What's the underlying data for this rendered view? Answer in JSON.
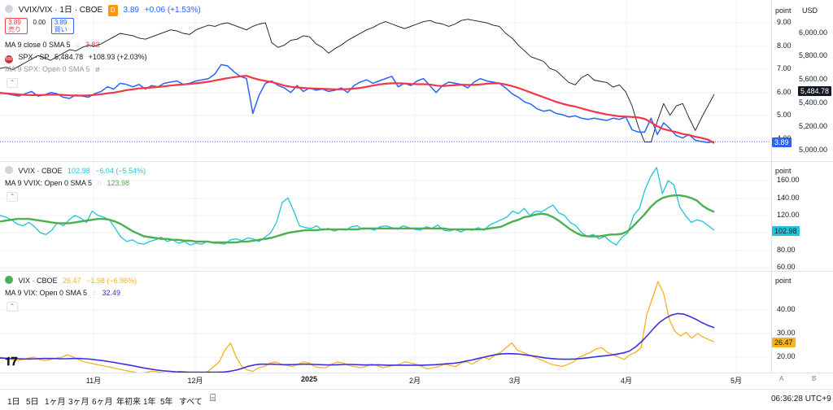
{
  "colors": {
    "black": "#131722",
    "red": "#f23645",
    "blue": "#2962ff",
    "cyan": "#22c3d6",
    "green": "#4caf50",
    "orange": "#f6b21b",
    "purple": "#3d2ee0",
    "grid": "#eef0f4"
  },
  "pane1": {
    "title": "VVIX/VIX · 1日 · CBOE",
    "d_badge": "D",
    "price": "3.89",
    "change": "+0.06 (+1.53%)",
    "sell_price": "3.89",
    "sell_label": "売り",
    "spread": "0.00",
    "buy_price": "3.89",
    "buy_label": "買い",
    "ma_label": "MA 9 close 0 SMA 5",
    "ma_value": "3.83",
    "spx_icon": "500",
    "spx_label": "SPX · SP",
    "spx_value": "5,484.78",
    "spx_change": "+108.93 (+2.03%)",
    "ma2_label": "MA 9 SPX: Open 0 SMA 5",
    "unit": "point",
    "currency": "USD",
    "ticks_left": [
      "9.00",
      "8.00",
      "7.00",
      "6.00",
      "5.00",
      "4.00"
    ],
    "ticks_right": [
      "6,000.00",
      "5,800.00",
      "5,600.00",
      "5,400.00",
      "5,200.00",
      "5,000.00"
    ],
    "tag_ratio": "3.89",
    "tag_spx": "5,484.78"
  },
  "pane2": {
    "title": "VVIX · CBOE",
    "price": "102.98",
    "change": "−6.04 (−5.54%)",
    "ma_label": "MA 9 VVIX: Open 0 SMA 5",
    "ma_value": "123.98",
    "unit": "point",
    "ticks": [
      "160.00",
      "140.00",
      "120.00",
      "100.00",
      "80.00",
      "60.00"
    ],
    "tag": "102.98"
  },
  "pane3": {
    "title": "VIX · CBOE",
    "price": "26.47",
    "change": "−1.98 (−6.96%)",
    "ma_label": "MA 9 VIX: Open 0 SMA 5",
    "ma_value": "32.49",
    "unit": "point",
    "ticks": [
      "40.00",
      "30.00",
      "20.00"
    ],
    "tag": "26.47"
  },
  "xaxis": [
    "11月",
    "12月",
    "2025",
    "2月",
    "3月",
    "4月",
    "5月"
  ],
  "scale_btns": [
    "A",
    "B"
  ],
  "ranges": [
    "1日",
    "5日",
    "1ヶ月",
    "3ヶ月",
    "6ヶ月",
    "年初来",
    "1年",
    "5年",
    "すべて"
  ],
  "clock": "06:36:28 UTC+9",
  "chart_data": [
    {
      "type": "line",
      "series": [
        {
          "name": "SPX",
          "axis": "right",
          "values": [
            5700,
            5710,
            5690,
            5720,
            5750,
            5780,
            5810,
            5790,
            5770,
            5800,
            5830,
            5860,
            5850,
            5880,
            5900,
            5890,
            5910,
            5940,
            5970,
            6000,
            5990,
            5980,
            5960,
            5950,
            5970,
            5990,
            6010,
            6030,
            6020,
            6000,
            5990,
            6030,
            6050,
            6070,
            6060,
            6080,
            6090,
            6070,
            6050,
            6030,
            6060,
            6080,
            6090,
            5920,
            5880,
            5900,
            5940,
            5950,
            5980,
            5970,
            5910,
            5880,
            5830,
            5870,
            5900,
            5940,
            5970,
            6000,
            6030,
            6050,
            6080,
            6100,
            6080,
            6060,
            6040,
            6060,
            6080,
            6100,
            6110,
            6090,
            6080,
            6060,
            6080,
            6110,
            6120,
            6110,
            6100,
            6090,
            6070,
            6060,
            6000,
            5960,
            5900,
            5850,
            5800,
            5780,
            5760,
            5700,
            5680,
            5630,
            5580,
            5560,
            5620,
            5650,
            5600,
            5590,
            5580,
            5540,
            5560,
            5500,
            5380,
            5200,
            5070,
            5070,
            5250,
            5400,
            5300,
            5380,
            5400,
            5280,
            5170,
            5280,
            5380,
            5480
          ]
        },
        {
          "name": "VVIX/VIX",
          "axis": "left",
          "values": [
            6.0,
            5.95,
            5.9,
            5.85,
            5.95,
            6.05,
            5.85,
            5.9,
            6.0,
            5.95,
            5.8,
            5.75,
            5.9,
            5.85,
            5.8,
            5.95,
            6.05,
            6.25,
            6.15,
            6.4,
            6.35,
            6.25,
            6.35,
            6.15,
            6.3,
            6.25,
            6.4,
            6.45,
            6.5,
            6.35,
            6.4,
            6.5,
            6.55,
            6.6,
            6.8,
            7.2,
            7.15,
            6.9,
            6.7,
            6.6,
            5.1,
            5.9,
            6.4,
            6.5,
            6.3,
            6.2,
            6.0,
            6.3,
            6.05,
            6.2,
            6.1,
            6.15,
            6.05,
            6.1,
            6.2,
            6.0,
            6.3,
            6.45,
            6.55,
            6.4,
            6.5,
            6.6,
            6.7,
            6.25,
            6.4,
            6.3,
            6.5,
            6.6,
            6.3,
            6.0,
            6.3,
            6.45,
            6.4,
            6.35,
            6.2,
            6.45,
            6.6,
            6.5,
            6.45,
            6.4,
            6.2,
            5.95,
            5.8,
            5.6,
            5.5,
            5.3,
            5.2,
            5.25,
            5.1,
            5.05,
            4.95,
            5.0,
            4.9,
            4.85,
            4.9,
            4.85,
            4.8,
            4.9,
            4.85,
            4.95,
            4.4,
            4.3,
            4.3,
            4.9,
            4.2,
            4.7,
            4.45,
            4.15,
            4.05,
            4.2,
            3.95,
            3.9,
            3.85,
            3.89
          ]
        },
        {
          "name": "MA 9",
          "axis": "left",
          "values": [
            5.98,
            5.96,
            5.94,
            5.92,
            5.9,
            5.89,
            5.89,
            5.9,
            5.91,
            5.91,
            5.9,
            5.88,
            5.87,
            5.87,
            5.88,
            5.9,
            5.93,
            5.97,
            6.0,
            6.05,
            6.1,
            6.14,
            6.18,
            6.2,
            6.22,
            6.24,
            6.27,
            6.3,
            6.33,
            6.35,
            6.37,
            6.4,
            6.43,
            6.47,
            6.52,
            6.57,
            6.62,
            6.66,
            6.7,
            6.72,
            6.63,
            6.55,
            6.5,
            6.45,
            6.38,
            6.3,
            6.25,
            6.22,
            6.2,
            6.18,
            6.17,
            6.16,
            6.15,
            6.14,
            6.14,
            6.15,
            6.17,
            6.2,
            6.25,
            6.3,
            6.35,
            6.38,
            6.4,
            6.4,
            6.39,
            6.37,
            6.36,
            6.36,
            6.35,
            6.3,
            6.28,
            6.3,
            6.32,
            6.34,
            6.33,
            6.33,
            6.35,
            6.38,
            6.4,
            6.4,
            6.35,
            6.28,
            6.2,
            6.1,
            6.0,
            5.9,
            5.8,
            5.7,
            5.6,
            5.52,
            5.45,
            5.4,
            5.32,
            5.25,
            5.18,
            5.12,
            5.06,
            5.02,
            4.98,
            4.97,
            4.95,
            4.93,
            4.87,
            4.72,
            4.55,
            4.43,
            4.36,
            4.3,
            4.22,
            4.18,
            4.1,
            4.05,
            3.98,
            3.83
          ]
        }
      ]
    },
    {
      "type": "line",
      "series": [
        {
          "name": "VVIX",
          "values": [
            120,
            118,
            115,
            110,
            108,
            112,
            107,
            100,
            98,
            103,
            112,
            108,
            115,
            120,
            117,
            112,
            125,
            120,
            118,
            115,
            105,
            95,
            90,
            92,
            88,
            87,
            90,
            92,
            95,
            90,
            92,
            88,
            90,
            86,
            88,
            87,
            90,
            88,
            88,
            87,
            92,
            93,
            91,
            94,
            93,
            90,
            95,
            100,
            112,
            135,
            140,
            125,
            108,
            106,
            105,
            108,
            103,
            105,
            102,
            104,
            103,
            107,
            108,
            104,
            105,
            103,
            107,
            108,
            106,
            104,
            108,
            106,
            104,
            103,
            107,
            105,
            109,
            103,
            102,
            104,
            101,
            104,
            103,
            106,
            103,
            109,
            112,
            115,
            118,
            125,
            122,
            128,
            120,
            125,
            124,
            128,
            132,
            123,
            120,
            112,
            108,
            100,
            96,
            98,
            93,
            96,
            90,
            86,
            95,
            100,
            120,
            128,
            150,
            165,
            175,
            145,
            160,
            155,
            130,
            120,
            112,
            115,
            113,
            108,
            102.98
          ]
        },
        {
          "name": "MA 9",
          "values": [
            113,
            114,
            115,
            116,
            116,
            116,
            115,
            114,
            113,
            112,
            111,
            111,
            111,
            112,
            113,
            114,
            115,
            116,
            116,
            115,
            113,
            110,
            106,
            102,
            99,
            96,
            95,
            94,
            93,
            93,
            92,
            92,
            91,
            91,
            90,
            90,
            90,
            89,
            89,
            89,
            89,
            89,
            90,
            90,
            91,
            92,
            93,
            94,
            96,
            98,
            100,
            101,
            102,
            103,
            103,
            103,
            104,
            104,
            104,
            104,
            104,
            104,
            104,
            105,
            105,
            105,
            105,
            105,
            105,
            105,
            105,
            105,
            105,
            105,
            105,
            105,
            105,
            105,
            104,
            104,
            104,
            104,
            104,
            104,
            104,
            105,
            106,
            107,
            110,
            113,
            115,
            118,
            119,
            121,
            122,
            121,
            118,
            114,
            109,
            104,
            100,
            97,
            96,
            96,
            96,
            97,
            98,
            98,
            99,
            102,
            108,
            115,
            122,
            130,
            136,
            140,
            142,
            143,
            143,
            142,
            140,
            137,
            131,
            127,
            123.98
          ]
        }
      ]
    },
    {
      "type": "line",
      "series": [
        {
          "name": "VIX",
          "values": [
            20,
            19.5,
            19,
            18.5,
            19,
            19.5,
            20,
            19,
            18.5,
            19,
            19.5,
            20,
            21,
            20,
            19,
            18,
            17.5,
            17,
            16.5,
            16,
            15.5,
            15,
            14.5,
            14,
            13.5,
            13,
            13.5,
            14,
            13.8,
            13.4,
            13,
            13.5,
            14,
            13.8,
            13.6,
            13.4,
            13.2,
            14,
            16,
            18,
            23,
            26,
            20,
            16,
            14.5,
            14,
            15.5,
            16,
            17.5,
            18,
            17,
            16.5,
            16,
            17,
            18,
            17.5,
            16,
            15.5,
            15.5,
            17,
            18,
            17.5,
            16.5,
            16,
            15.5,
            16,
            17,
            16.5,
            15.5,
            16,
            16.5,
            17,
            18,
            17.5,
            17,
            16,
            15,
            15.5,
            16,
            17,
            16.5,
            16,
            17.5,
            18,
            17,
            18.5,
            20,
            19,
            21,
            22,
            24,
            26,
            23,
            22,
            21,
            20,
            19,
            18,
            17,
            16.5,
            16,
            17,
            18,
            20,
            21,
            22,
            23.5,
            24,
            22,
            21,
            20,
            19,
            21,
            22,
            24,
            38,
            45,
            52,
            47,
            36,
            31,
            29,
            30.5,
            28,
            30,
            28.5,
            27.5,
            26.47
          ]
        },
        {
          "name": "MA 9",
          "values": [
            19.6,
            19.5,
            19.4,
            19.3,
            19.2,
            19.2,
            19.3,
            19.4,
            19.4,
            19.4,
            19.3,
            19.3,
            19.4,
            19.4,
            19.3,
            19.1,
            18.8,
            18.5,
            18.1,
            17.7,
            17.2,
            16.8,
            16.3,
            15.8,
            15.3,
            14.9,
            14.5,
            14.2,
            14,
            13.8,
            13.7,
            13.6,
            13.6,
            13.6,
            13.6,
            13.6,
            13.6,
            13.7,
            14,
            14.5,
            15.2,
            16.1,
            16.7,
            17,
            17,
            17,
            16.9,
            16.8,
            16.8,
            16.9,
            17,
            17,
            16.9,
            16.8,
            16.7,
            16.7,
            16.8,
            16.9,
            16.9,
            16.8,
            16.7,
            16.7,
            16.7,
            16.7,
            16.6,
            16.6,
            16.6,
            16.6,
            16.6,
            16.6,
            16.6,
            16.7,
            16.8,
            17,
            17.2,
            17.4,
            17.8,
            18.3,
            18.8,
            19.4,
            20,
            20.6,
            21.1,
            21.4,
            21.5,
            21.4,
            21.2,
            20.9,
            20.5,
            20.1,
            19.7,
            19.4,
            19.2,
            19.1,
            19.1,
            19.2,
            19.4,
            19.7,
            20,
            20.3,
            20.6,
            20.9,
            21.3,
            21.8,
            22.6,
            24.3,
            26.6,
            29.3,
            32.2,
            34.8,
            36.6,
            37.9,
            38.5,
            38.2,
            37.2,
            36,
            34.6,
            33.4,
            32.49
          ]
        }
      ]
    }
  ]
}
